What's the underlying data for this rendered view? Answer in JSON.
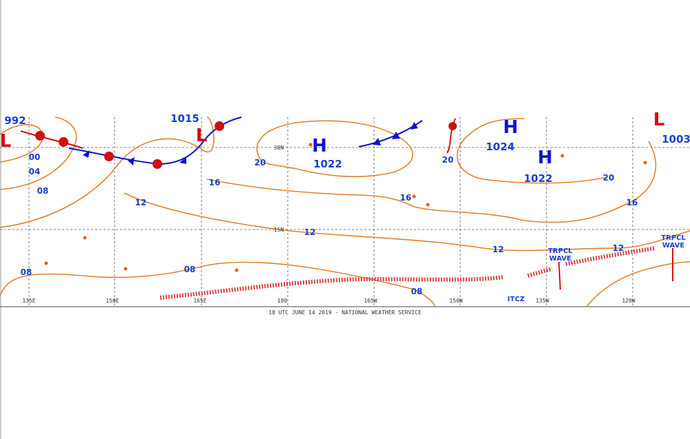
{
  "centers": [
    {
      "symbol": "L",
      "pressure": "992"
    },
    {
      "symbol": "L",
      "pressure": "1015"
    },
    {
      "symbol": "H",
      "pressure": "1022"
    },
    {
      "symbol": "H",
      "pressure": "1024"
    },
    {
      "symbol": "H",
      "pressure": "1022"
    },
    {
      "symbol": "L",
      "pressure": "1003"
    }
  ],
  "isobar_labels": [
    "00",
    "04",
    "08",
    "12",
    "16",
    "20",
    "16",
    "20",
    "12",
    "12",
    "20",
    "16",
    "12",
    "08",
    "08",
    "08"
  ],
  "latitude_labels": [
    "30N",
    "15N"
  ],
  "longitude_labels": [
    "135E",
    "150E",
    "165E",
    "180",
    "165W",
    "150W",
    "135W",
    "120W"
  ],
  "features": [
    "TRPCL WAVE",
    "TRPCL WAVE",
    "ITCZ"
  ],
  "footer": "18 UTC JUNE 14 2019 - NATIONAL WEATHER SERVICE"
}
